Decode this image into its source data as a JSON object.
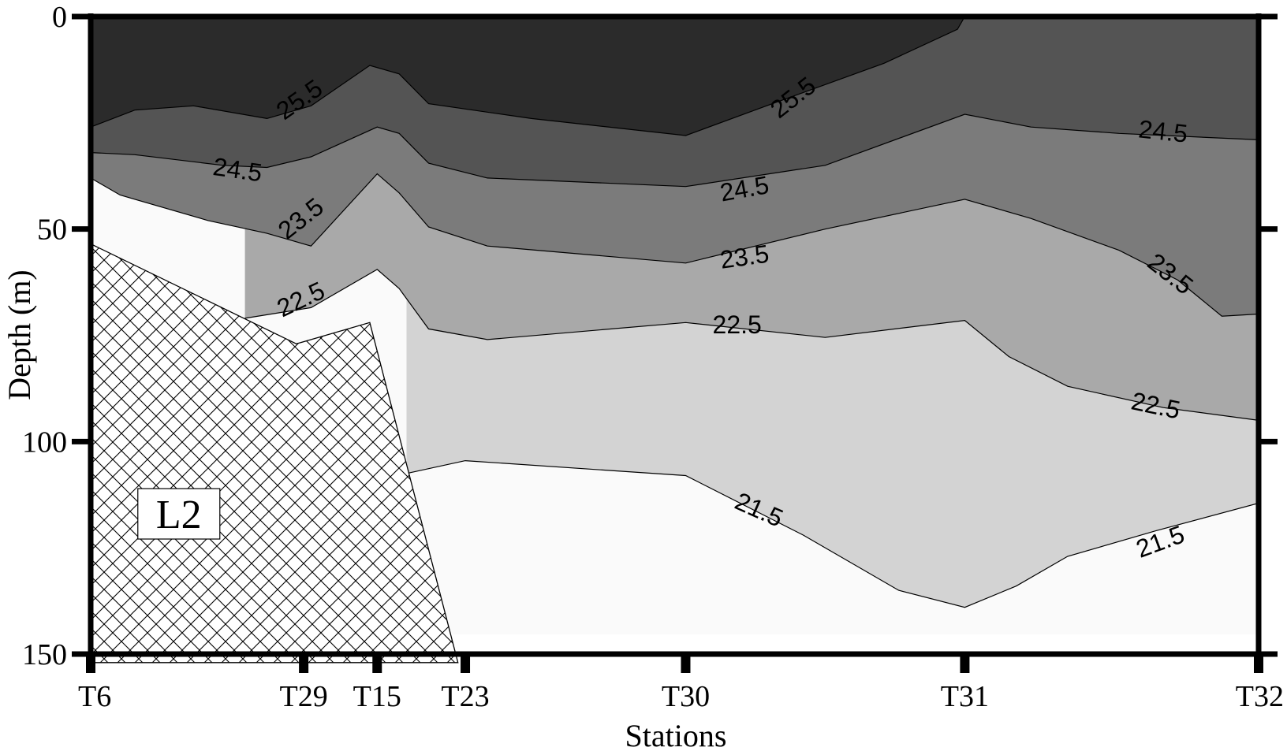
{
  "chart_data": {
    "type": "contour",
    "xlabel": "Stations",
    "ylabel": "Depth (m)",
    "ylim": [
      0,
      150
    ],
    "y_inverted": true,
    "yticks": [
      "0",
      "50",
      "100",
      "150"
    ],
    "stations": [
      "T6",
      "T29",
      "T15",
      "T23",
      "T30",
      "T31",
      "T32"
    ],
    "station_distance": [
      0,
      14.5,
      19.5,
      25.5,
      40.5,
      59.5,
      79.5
    ],
    "xlim": [
      0,
      79.5
    ],
    "bottom_label": "L2",
    "fill_colors": [
      "#fafafa",
      "#d3d3d3",
      "#a9a9a9",
      "#7b7b7b",
      "#545454",
      "#2b2b2b"
    ],
    "isolines": [
      {
        "value": "21.5",
        "points": [
          [
            21.5,
            107.5
          ],
          [
            25.5,
            104.5
          ],
          [
            40.5,
            108
          ],
          [
            48.5,
            122
          ],
          [
            55,
            135
          ],
          [
            59.5,
            139
          ],
          [
            63,
            134
          ],
          [
            66.5,
            127
          ],
          [
            72.5,
            121
          ],
          [
            79.5,
            114.5
          ]
        ],
        "labels": [
          {
            "x": 45.5,
            "y": 116,
            "angle": 24
          },
          {
            "x": 72.8,
            "y": 123.5,
            "angle": -20
          }
        ]
      },
      {
        "value": "22.5",
        "points": [
          [
            10.5,
            71
          ],
          [
            15,
            68.5
          ],
          [
            19.5,
            59.5
          ],
          [
            21,
            64
          ],
          [
            23,
            73.5
          ],
          [
            27,
            76
          ],
          [
            40.5,
            72
          ],
          [
            50,
            75.5
          ],
          [
            59.5,
            71.5
          ],
          [
            62.5,
            80
          ],
          [
            66.5,
            87
          ],
          [
            73,
            92
          ],
          [
            79.5,
            95
          ]
        ],
        "labels": [
          {
            "x": 14.3,
            "y": 66.5,
            "angle": -25
          },
          {
            "x": 44,
            "y": 72.5,
            "angle": 0
          },
          {
            "x": 72.5,
            "y": 91.5,
            "angle": 12
          }
        ]
      },
      {
        "value": "23.5",
        "points": [
          [
            0,
            38
          ],
          [
            2,
            42
          ],
          [
            8,
            48
          ],
          [
            12,
            51
          ],
          [
            15,
            54
          ],
          [
            19.5,
            37
          ],
          [
            21,
            41.5
          ],
          [
            23,
            49.5
          ],
          [
            27,
            54
          ],
          [
            40.5,
            58
          ],
          [
            50,
            50
          ],
          [
            59.5,
            43
          ],
          [
            64,
            47.5
          ],
          [
            70,
            55
          ],
          [
            74,
            62
          ],
          [
            77,
            70.5
          ],
          [
            79.5,
            70
          ]
        ],
        "labels": [
          {
            "x": 14.3,
            "y": 47.5,
            "angle": -38
          },
          {
            "x": 44.5,
            "y": 56.5,
            "angle": -8
          },
          {
            "x": 73.5,
            "y": 60.5,
            "angle": 38
          }
        ]
      },
      {
        "value": "24.5",
        "points": [
          [
            0,
            32
          ],
          [
            3,
            32.5
          ],
          [
            9,
            35
          ],
          [
            12,
            35.5
          ],
          [
            15,
            33
          ],
          [
            19.5,
            26
          ],
          [
            21,
            27.5
          ],
          [
            23,
            34.5
          ],
          [
            27,
            38
          ],
          [
            40.5,
            40
          ],
          [
            50,
            35
          ],
          [
            59.5,
            23
          ],
          [
            64,
            26
          ],
          [
            70,
            27.5
          ],
          [
            79.5,
            29
          ]
        ],
        "labels": [
          {
            "x": 10,
            "y": 36,
            "angle": 8
          },
          {
            "x": 44.5,
            "y": 40.5,
            "angle": -10
          },
          {
            "x": 73,
            "y": 27,
            "angle": 6
          }
        ]
      },
      {
        "value": "25.5",
        "points": [
          [
            0,
            26
          ],
          [
            3,
            22
          ],
          [
            7,
            21
          ],
          [
            12,
            24
          ],
          [
            15,
            21
          ],
          [
            19,
            11.5
          ],
          [
            21,
            13.5
          ],
          [
            23,
            20.5
          ],
          [
            30,
            24
          ],
          [
            40.5,
            28
          ],
          [
            46,
            21
          ],
          [
            54,
            11
          ],
          [
            59,
            3
          ],
          [
            59.5,
            0
          ]
        ],
        "labels": [
          {
            "x": 14.2,
            "y": 19.5,
            "angle": -35
          },
          {
            "x": 47.8,
            "y": 19,
            "angle": -38
          }
        ]
      }
    ],
    "bottom_polygon": [
      [
        0,
        53.5
      ],
      [
        14,
        77
      ],
      [
        19,
        72
      ],
      [
        25,
        152
      ],
      [
        0,
        152
      ]
    ]
  }
}
